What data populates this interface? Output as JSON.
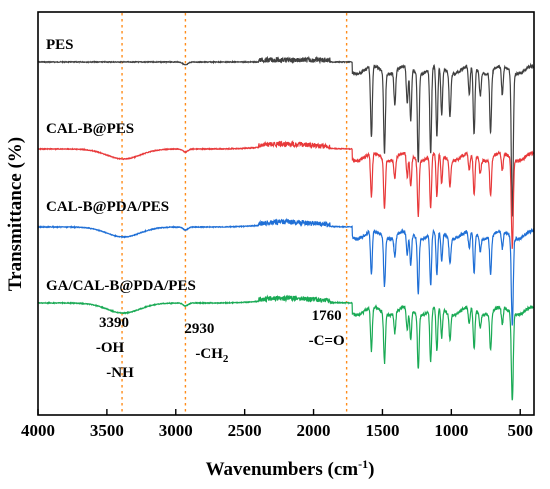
{
  "chart_data": {
    "type": "line",
    "title": "",
    "xlabel_main": "Wavenumbers (cm",
    "xlabel_sup": "-1",
    "xlabel_close": ")",
    "ylabel": "Transmittance (%)",
    "xlim": [
      4000,
      400
    ],
    "x_reversed": true,
    "x_ticks": [
      {
        "value": 4000,
        "label": "4000"
      },
      {
        "value": 3500,
        "label": "3500"
      },
      {
        "value": 3000,
        "label": "3000"
      },
      {
        "value": 2500,
        "label": "2500"
      },
      {
        "value": 2000,
        "label": "2000"
      },
      {
        "value": 1500,
        "label": "1500"
      },
      {
        "value": 1000,
        "label": "1000"
      },
      {
        "value": 500,
        "label": "500"
      }
    ],
    "y_ticks_shown": false,
    "grid": false,
    "reference_lines": [
      {
        "x": 3390,
        "color": "#ff8c1a",
        "style": "dotted"
      },
      {
        "x": 2930,
        "color": "#ff8c1a",
        "style": "dotted"
      },
      {
        "x": 1760,
        "color": "#ff8c1a",
        "style": "dotted"
      }
    ],
    "annotations": [
      {
        "x": 3390,
        "lines": [
          "3390",
          "-OH",
          "-NH"
        ]
      },
      {
        "x": 2930,
        "lines": [
          "2930",
          "-CH",
          "2"
        ]
      },
      {
        "x": 1760,
        "lines": [
          "1760",
          "-C=O"
        ]
      }
    ],
    "series": [
      {
        "name": "PES",
        "color": "#404040",
        "offset": 0
      },
      {
        "name": "CAL-B@PES",
        "color": "#e8393a",
        "offset": 1
      },
      {
        "name": "CAL-B@PDA/PES",
        "color": "#1f6fd6",
        "offset": 2
      },
      {
        "name": "GA/CAL-B@PDA/PES",
        "color": "#1aaa55",
        "offset": 3
      }
    ],
    "peaks": [
      {
        "x": 1580,
        "depth": 0.75
      },
      {
        "x": 1485,
        "depth": 0.85
      },
      {
        "x": 1410,
        "depth": 0.35
      },
      {
        "x": 1320,
        "depth": 0.4
      },
      {
        "x": 1295,
        "depth": 0.55
      },
      {
        "x": 1240,
        "depth": 0.95
      },
      {
        "x": 1150,
        "depth": 0.9
      },
      {
        "x": 1105,
        "depth": 0.75
      },
      {
        "x": 1070,
        "depth": 0.5
      },
      {
        "x": 1010,
        "depth": 0.45
      },
      {
        "x": 870,
        "depth": 0.3
      },
      {
        "x": 835,
        "depth": 0.7
      },
      {
        "x": 790,
        "depth": 0.25
      },
      {
        "x": 715,
        "depth": 0.65
      },
      {
        "x": 630,
        "depth": 0.3
      },
      {
        "x": 560,
        "depth": 0.85
      },
      {
        "x": 555,
        "depth": 0.8
      }
    ]
  }
}
